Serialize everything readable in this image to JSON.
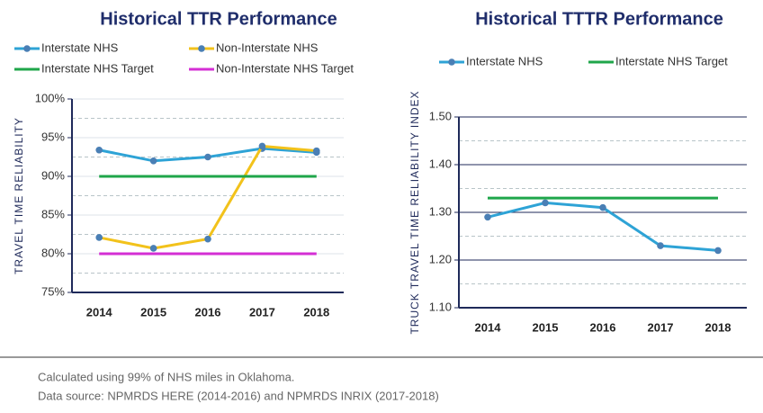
{
  "chart_data": [
    {
      "type": "line",
      "title": "Historical TTR Performance",
      "y_label": "TRAVEL TIME RELIABILITY",
      "categories": [
        "2014",
        "2015",
        "2016",
        "2017",
        "2018"
      ],
      "series": [
        {
          "name": "Interstate NHS",
          "color": "#2ea3d6",
          "marker": true,
          "values": [
            93.4,
            92.0,
            92.5,
            93.6,
            93.1
          ]
        },
        {
          "name": "Non-Interstate NHS",
          "color": "#f2c21b",
          "marker": true,
          "values": [
            82.1,
            80.7,
            81.9,
            93.9,
            93.3
          ]
        },
        {
          "name": "Interstate NHS Target",
          "color": "#1fa64a",
          "marker": false,
          "values": [
            90,
            90,
            90,
            90,
            90
          ]
        },
        {
          "name": "Non-Interstate NHS Target",
          "color": "#d42fd4",
          "marker": false,
          "values": [
            80,
            80,
            80,
            80,
            80
          ]
        }
      ],
      "ylim": [
        75,
        100
      ],
      "yticks": [
        {
          "value": 75,
          "label": "75%"
        },
        {
          "value": 80,
          "label": "80%"
        },
        {
          "value": 85,
          "label": "85%"
        },
        {
          "value": 90,
          "label": "90%"
        },
        {
          "value": 95,
          "label": "95%"
        },
        {
          "value": 100,
          "label": "100%"
        }
      ],
      "minor_grid": [
        77.5,
        82.5,
        87.5,
        92.5,
        97.5
      ]
    },
    {
      "type": "line",
      "title": "Historical TTTR Performance",
      "y_label": "TRUCK TRAVEL TIME RELIABILITY INDEX",
      "categories": [
        "2014",
        "2015",
        "2016",
        "2017",
        "2018"
      ],
      "series": [
        {
          "name": "Interstate NHS",
          "color": "#2ea3d6",
          "marker": true,
          "values": [
            1.29,
            1.32,
            1.31,
            1.23,
            1.22
          ]
        },
        {
          "name": "Interstate NHS Target",
          "color": "#1fa64a",
          "marker": false,
          "values": [
            1.33,
            1.33,
            1.33,
            1.33,
            1.33
          ]
        }
      ],
      "ylim": [
        1.1,
        1.5
      ],
      "yticks": [
        {
          "value": 1.1,
          "label": "1.10"
        },
        {
          "value": 1.2,
          "label": "1.20"
        },
        {
          "value": 1.3,
          "label": "1.30"
        },
        {
          "value": 1.4,
          "label": "1.40"
        },
        {
          "value": 1.5,
          "label": "1.50"
        }
      ],
      "minor_grid": [
        1.15,
        1.25,
        1.35,
        1.45
      ]
    }
  ],
  "footer": [
    "Calculated using 99% of NHS miles in Oklahoma.",
    "Data source: NPMRDS HERE (2014-2016) and NPMRDS INRIX (2017-2018)"
  ]
}
